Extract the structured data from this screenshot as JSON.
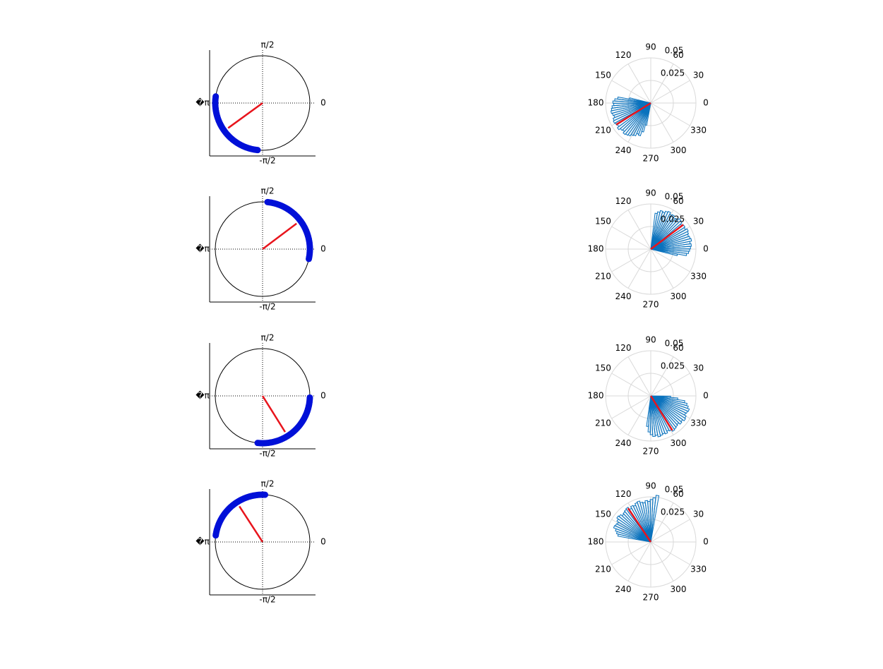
{
  "figure": {
    "circ_labels": {
      "top": "π/2",
      "right": "0",
      "left": "�π",
      "bottom": "-π/2"
    },
    "polar_angle_ticks": [
      "0",
      "30",
      "60",
      "90",
      "120",
      "150",
      "180",
      "210",
      "240",
      "270",
      "300",
      "330"
    ],
    "polar_radial_ticks": [
      "0.025",
      "0.05"
    ]
  },
  "colors": {
    "arc": "#0010d8",
    "mean": "#e8141c",
    "hist": "#0a72bd",
    "grid": "#d9d9d9"
  },
  "chart_data": [
    {
      "type": "scatter",
      "panel": "circle-1",
      "arc_start_deg": 172,
      "arc_end_deg": 264,
      "mean_deg": 216,
      "mean_length": 0.9
    },
    {
      "type": "bar",
      "panel": "rose-1",
      "rmax": 0.05,
      "bin_start_deg": 166,
      "bin_end_deg": 260,
      "bin_width_deg": 3.6,
      "values": [
        0.024,
        0.037,
        0.04,
        0.042,
        0.041,
        0.043,
        0.044,
        0.045,
        0.044,
        0.043,
        0.045,
        0.046,
        0.045,
        0.044,
        0.046,
        0.044,
        0.043,
        0.045,
        0.044,
        0.043,
        0.041,
        0.04,
        0.037,
        0.038,
        0.033,
        0.025
      ],
      "mean_deg": 212,
      "mean_length": 0.045
    },
    {
      "type": "scatter",
      "panel": "circle-2",
      "arc_start_deg": -12,
      "arc_end_deg": 84,
      "mean_deg": 37,
      "mean_length": 0.9
    },
    {
      "type": "bar",
      "panel": "rose-2",
      "rmax": 0.05,
      "bin_start_deg": -14,
      "bin_end_deg": 84,
      "bin_width_deg": 3.6,
      "values": [
        0.03,
        0.04,
        0.042,
        0.043,
        0.044,
        0.045,
        0.044,
        0.046,
        0.045,
        0.044,
        0.045,
        0.046,
        0.044,
        0.045,
        0.043,
        0.045,
        0.046,
        0.044,
        0.043,
        0.045,
        0.044,
        0.046,
        0.045,
        0.043,
        0.044,
        0.042,
        0.04
      ],
      "mean_deg": 37,
      "mean_length": 0.045
    },
    {
      "type": "scatter",
      "panel": "circle-3",
      "arc_start_deg": 264,
      "arc_end_deg": 358,
      "mean_deg": 302,
      "mean_length": 0.9
    },
    {
      "type": "bar",
      "panel": "rose-3",
      "rmax": 0.05,
      "bin_start_deg": 262,
      "bin_end_deg": 358,
      "bin_width_deg": 3.6,
      "values": [
        0.034,
        0.04,
        0.043,
        0.045,
        0.044,
        0.046,
        0.045,
        0.044,
        0.045,
        0.043,
        0.044,
        0.046,
        0.045,
        0.044,
        0.043,
        0.045,
        0.044,
        0.046,
        0.045,
        0.043,
        0.044,
        0.045,
        0.043,
        0.041,
        0.038,
        0.03,
        0.022
      ],
      "mean_deg": 302,
      "mean_length": 0.045
    },
    {
      "type": "scatter",
      "panel": "circle-4",
      "arc_start_deg": 87,
      "arc_end_deg": 172,
      "mean_deg": 123,
      "mean_length": 0.9
    },
    {
      "type": "bar",
      "panel": "rose-4",
      "rmax": 0.05,
      "bin_start_deg": 80,
      "bin_end_deg": 170,
      "bin_width_deg": 3.6,
      "values": [
        0.052,
        0.049,
        0.047,
        0.045,
        0.046,
        0.044,
        0.045,
        0.047,
        0.046,
        0.044,
        0.045,
        0.043,
        0.046,
        0.045,
        0.044,
        0.043,
        0.045,
        0.046,
        0.044,
        0.042,
        0.043,
        0.044,
        0.041,
        0.039,
        0.037
      ],
      "mean_deg": 124,
      "mean_length": 0.045
    }
  ]
}
